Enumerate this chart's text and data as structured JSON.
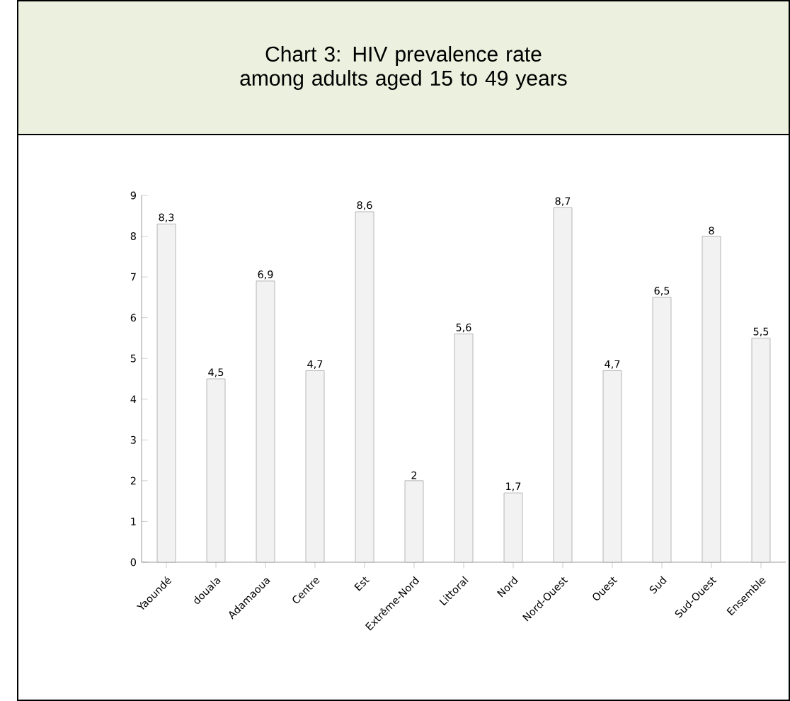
{
  "chart_data": {
    "type": "bar",
    "title": "Chart 3: HIV prevalence rate among adults aged 15 to 49 years",
    "categories": [
      "Yaoundé",
      "douala",
      "Adamaoua",
      "Centre",
      "Est",
      "Extrême-Nord",
      "Littoral",
      "Nord",
      "Nord-Ouest",
      "Ouest",
      "Sud",
      "Sud-Ouest",
      "Ensemble"
    ],
    "values": [
      8.3,
      4.5,
      6.9,
      4.7,
      8.6,
      2,
      5.6,
      1.7,
      8.7,
      4.7,
      6.5,
      8,
      5.5
    ],
    "value_labels": [
      "8,3",
      "4,5",
      "6,9",
      "4,7",
      "8,6",
      "2",
      "5,6",
      "1,7",
      "8,7",
      "4,7",
      "6,5",
      "8",
      "5,5"
    ],
    "color": "#f2f2f2",
    "ylim": [
      0,
      9
    ],
    "yticks": [
      0,
      1,
      2,
      3,
      4,
      5,
      6,
      7,
      8,
      9
    ],
    "grid": false
  }
}
